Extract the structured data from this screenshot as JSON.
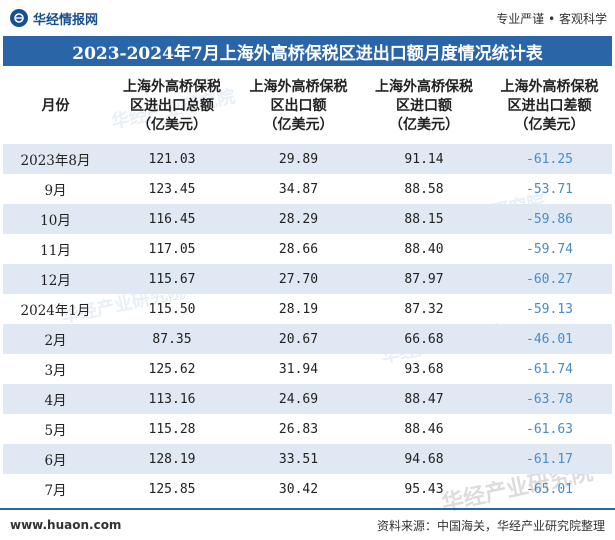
{
  "header": {
    "brand_name": "华经情报网",
    "slogan": "专业严谨 • 客观科学"
  },
  "title": "2023-2024年7月上海外高桥保税区进出口额月度情况统计表",
  "columns": [
    "月份",
    "上海外高桥保税区进出口总额（亿美元）",
    "上海外高桥保税区出口额（亿美元）",
    "上海外高桥保税区进口额（亿美元）",
    "上海外高桥保税区进出口差额（亿美元）"
  ],
  "column_lines": [
    [
      "月份"
    ],
    [
      "上海外高桥保税",
      "区进出口总额",
      "（亿美元）"
    ],
    [
      "上海外高桥保税",
      "区出口额",
      "（亿美元）"
    ],
    [
      "上海外高桥保税",
      "区进口额",
      "（亿美元）"
    ],
    [
      "上海外高桥保税",
      "区进出口差额",
      "（亿美元）"
    ]
  ],
  "rows": [
    [
      "2023年8月",
      "121.03",
      "29.89",
      "91.14",
      "-61.25"
    ],
    [
      "9月",
      "123.45",
      "34.87",
      "88.58",
      "-53.71"
    ],
    [
      "10月",
      "116.45",
      "28.29",
      "88.15",
      "-59.86"
    ],
    [
      "11月",
      "117.05",
      "28.66",
      "88.40",
      "-59.74"
    ],
    [
      "12月",
      "115.67",
      "27.70",
      "87.97",
      "-60.27"
    ],
    [
      "2024年1月",
      "115.50",
      "28.19",
      "87.32",
      "-59.13"
    ],
    [
      "2月",
      "87.35",
      "20.67",
      "66.68",
      "-46.01"
    ],
    [
      "3月",
      "125.62",
      "31.94",
      "93.68",
      "-61.74"
    ],
    [
      "4月",
      "113.16",
      "24.69",
      "88.47",
      "-63.78"
    ],
    [
      "5月",
      "115.28",
      "26.83",
      "88.46",
      "-61.63"
    ],
    [
      "6月",
      "128.19",
      "33.51",
      "94.68",
      "-61.17"
    ],
    [
      "7月",
      "125.85",
      "30.42",
      "95.43",
      "-65.01"
    ]
  ],
  "watermark": "华经产业研究院",
  "footer": {
    "site": "www.huaon.com",
    "source": "资料来源：中国海关，华经产业研究院整理"
  },
  "colors": {
    "primary": "#2a65a8",
    "row_shade": "#dfe8f3",
    "negative_value": "#4a8cc7"
  }
}
